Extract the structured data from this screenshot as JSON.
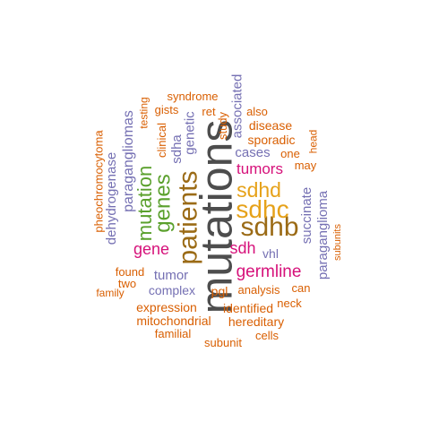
{
  "colors": {
    "dark": "#4d4d4d",
    "brown": "#9b6b16",
    "gold": "#e6a21a",
    "green": "#5aa02c",
    "magenta": "#d6117a",
    "purple": "#7570b3",
    "orange": "#d95f02"
  },
  "words": [
    {
      "text": "mutations",
      "color": "dark"
    },
    {
      "text": "patients",
      "color": "brown"
    },
    {
      "text": "sdhb",
      "color": "brown"
    },
    {
      "text": "sdhc",
      "color": "gold"
    },
    {
      "text": "sdhd",
      "color": "gold"
    },
    {
      "text": "genes",
      "color": "green"
    },
    {
      "text": "mutation",
      "color": "green"
    },
    {
      "text": "germline",
      "color": "magenta"
    },
    {
      "text": "gene",
      "color": "magenta"
    },
    {
      "text": "sdh",
      "color": "magenta"
    },
    {
      "text": "tumors",
      "color": "magenta"
    },
    {
      "text": "paragangliomas",
      "color": "purple"
    },
    {
      "text": "paraganglioma",
      "color": "purple"
    },
    {
      "text": "succinate",
      "color": "purple"
    },
    {
      "text": "dehydrogenase",
      "color": "purple"
    },
    {
      "text": "genetic",
      "color": "purple"
    },
    {
      "text": "sdha",
      "color": "purple"
    },
    {
      "text": "associated",
      "color": "purple"
    },
    {
      "text": "cases",
      "color": "purple"
    },
    {
      "text": "tumor",
      "color": "purple"
    },
    {
      "text": "complex",
      "color": "purple"
    },
    {
      "text": "vhl",
      "color": "purple"
    },
    {
      "text": "pheochromocytoma",
      "color": "orange"
    },
    {
      "text": "syndrome",
      "color": "orange"
    },
    {
      "text": "gists",
      "color": "orange"
    },
    {
      "text": "testing",
      "color": "orange"
    },
    {
      "text": "clinical",
      "color": "orange"
    },
    {
      "text": "ret",
      "color": "orange"
    },
    {
      "text": "study",
      "color": "orange"
    },
    {
      "text": "also",
      "color": "orange"
    },
    {
      "text": "disease",
      "color": "orange"
    },
    {
      "text": "sporadic",
      "color": "orange"
    },
    {
      "text": "head",
      "color": "orange"
    },
    {
      "text": "one",
      "color": "orange"
    },
    {
      "text": "may",
      "color": "orange"
    },
    {
      "text": "subunits",
      "color": "orange"
    },
    {
      "text": "found",
      "color": "orange"
    },
    {
      "text": "two",
      "color": "orange"
    },
    {
      "text": "family",
      "color": "orange"
    },
    {
      "text": "pgl",
      "color": "orange"
    },
    {
      "text": "analysis",
      "color": "orange"
    },
    {
      "text": "can",
      "color": "orange"
    },
    {
      "text": "neck",
      "color": "orange"
    },
    {
      "text": "expression",
      "color": "orange"
    },
    {
      "text": "identified",
      "color": "orange"
    },
    {
      "text": "mitochondrial",
      "color": "orange"
    },
    {
      "text": "hereditary",
      "color": "orange"
    },
    {
      "text": "familial",
      "color": "orange"
    },
    {
      "text": "cells",
      "color": "orange"
    },
    {
      "text": "subunit",
      "color": "orange"
    }
  ]
}
